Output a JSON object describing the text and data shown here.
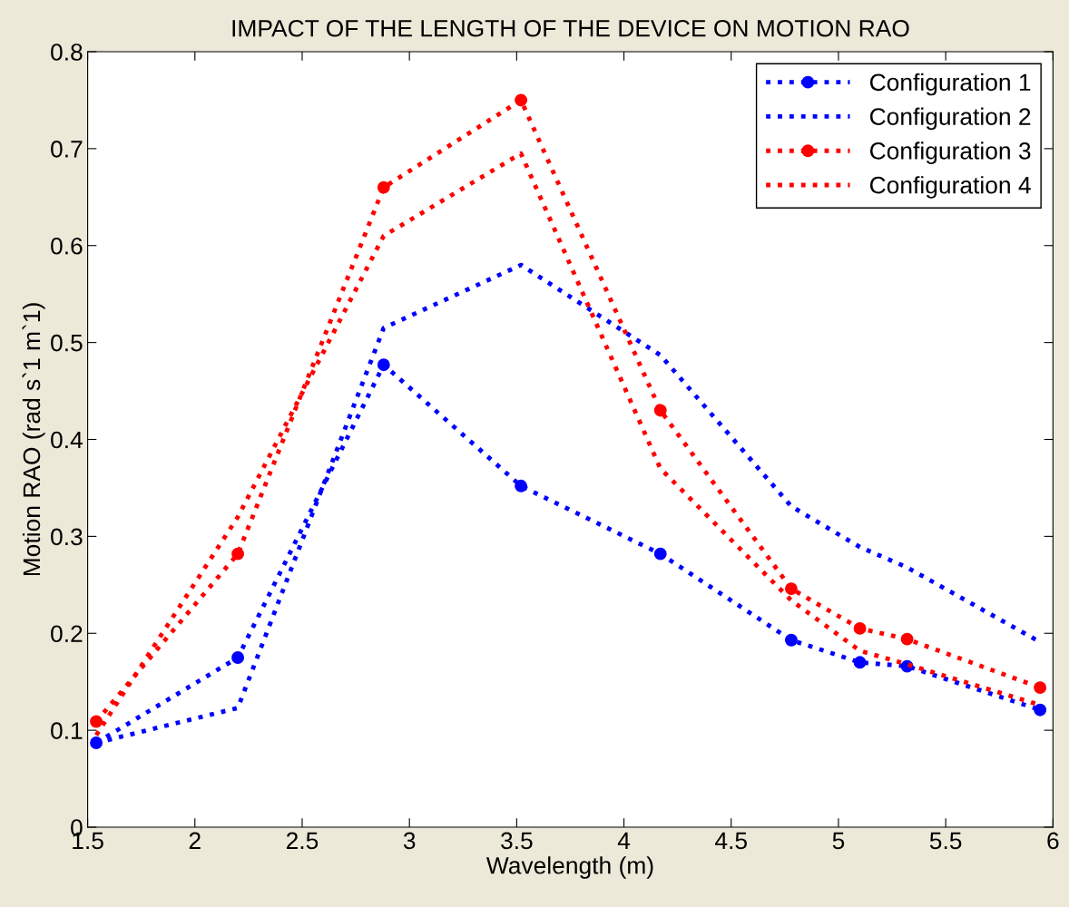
{
  "chart_data": {
    "type": "line",
    "title": "IMPACT OF THE LENGTH OF THE DEVICE ON MOTION RAO",
    "xlabel": "Wavelength (m)",
    "ylabel": "Motion RAO (rad s`1 m`1)",
    "x": [
      1.54,
      2.2,
      2.88,
      3.52,
      4.17,
      4.78,
      5.1,
      5.32,
      5.94
    ],
    "series": [
      {
        "name": "Configuration 1",
        "color": "#0000ff",
        "marker": "circle",
        "values": [
          0.087,
          0.175,
          0.477,
          0.352,
          0.282,
          0.193,
          0.17,
          0.166,
          0.121
        ]
      },
      {
        "name": "Configuration 2",
        "color": "#0000ff",
        "marker": "none",
        "values": [
          0.087,
          0.123,
          0.515,
          0.58,
          0.487,
          0.331,
          0.289,
          0.268,
          0.191
        ]
      },
      {
        "name": "Configuration 3",
        "color": "#ff0000",
        "marker": "circle",
        "values": [
          0.109,
          0.282,
          0.66,
          0.75,
          0.43,
          0.246,
          0.205,
          0.194,
          0.144
        ]
      },
      {
        "name": "Configuration 4",
        "color": "#ff0000",
        "marker": "none",
        "values": [
          0.095,
          0.32,
          0.61,
          0.695,
          0.37,
          0.234,
          0.182,
          0.168,
          0.126
        ]
      }
    ],
    "xlim": [
      1.5,
      6
    ],
    "xticks": [
      1.5,
      2,
      2.5,
      3,
      3.5,
      4,
      4.5,
      5,
      5.5,
      6
    ],
    "ylim": [
      0,
      0.8
    ],
    "yticks": [
      0,
      0.1,
      0.2,
      0.3,
      0.4,
      0.5,
      0.6,
      0.7,
      0.8
    ],
    "grid": false,
    "legend": "top right",
    "line_style": "dotted"
  }
}
